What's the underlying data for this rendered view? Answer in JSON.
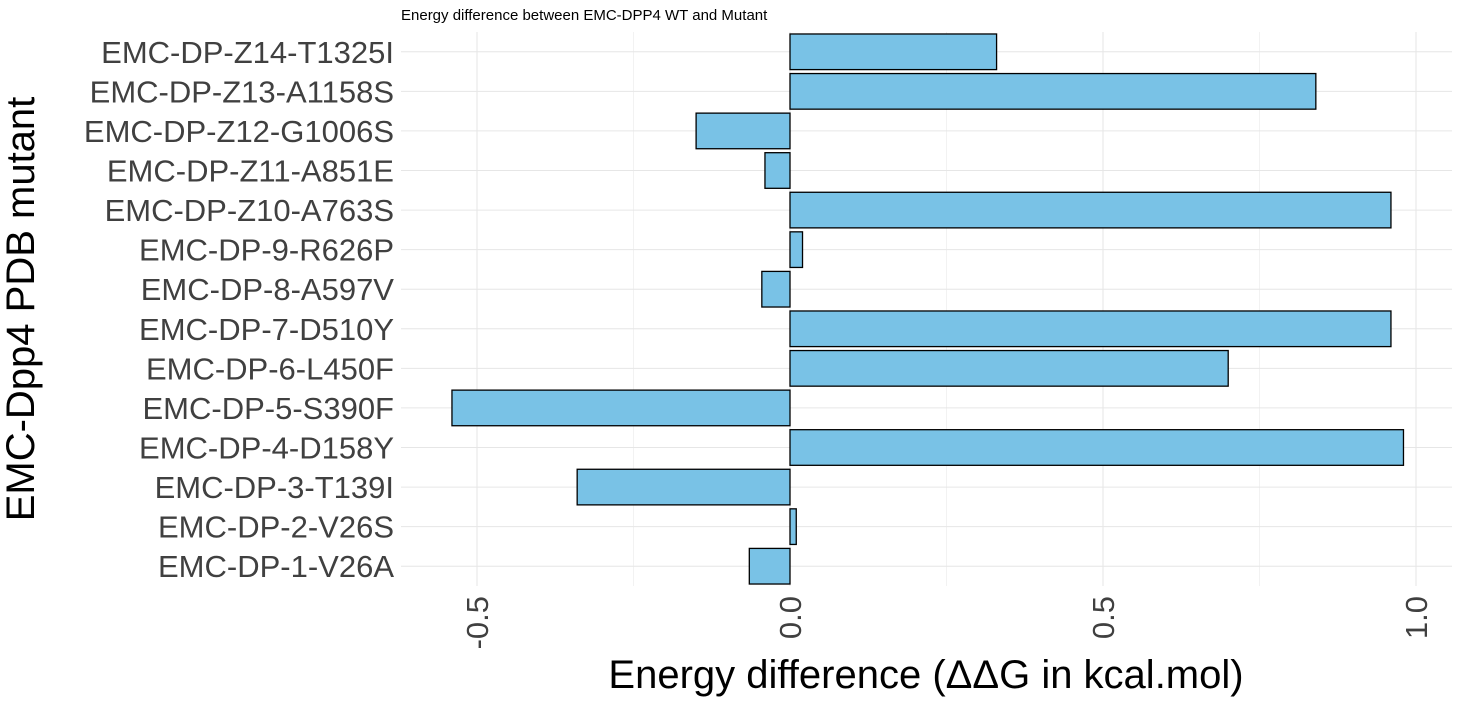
{
  "chart_data": {
    "type": "bar",
    "orientation": "horizontal",
    "title": "Energy difference between EMC-DPP4 WT and Mutant",
    "xlabel": "Energy difference (ΔΔG in kcal.mol)",
    "ylabel": "EMC-Dpp4 PDB mutant",
    "categories": [
      "EMC-DP-Z14-T1325I",
      "EMC-DP-Z13-A1158S",
      "EMC-DP-Z12-G1006S",
      "EMC-DP-Z11-A851E",
      "EMC-DP-Z10-A763S",
      "EMC-DP-9-R626P",
      "EMC-DP-8-A597V",
      "EMC-DP-7-D510Y",
      "EMC-DP-6-L450F",
      "EMC-DP-5-S390F",
      "EMC-DP-4-D158Y",
      "EMC-DP-3-T139I",
      "EMC-DP-2-V26S",
      "EMC-DP-1-V26A"
    ],
    "values": [
      0.33,
      0.84,
      -0.15,
      -0.04,
      0.96,
      0.02,
      -0.045,
      0.96,
      0.7,
      -0.54,
      0.98,
      -0.34,
      0.01,
      -0.065
    ],
    "xlim": [
      -0.62,
      1.05
    ],
    "xticks": [
      -0.5,
      0.0,
      0.5,
      1.0
    ],
    "xtick_labels": [
      "-0.5",
      "0.0",
      "0.5",
      "1.0"
    ],
    "grid": true,
    "bar_fill": "#79c2e6",
    "bar_edge": "#000000"
  }
}
